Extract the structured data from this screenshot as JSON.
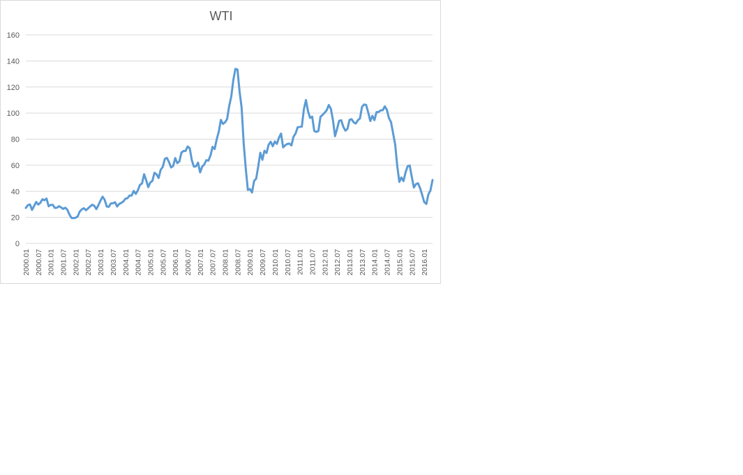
{
  "chart_data": {
    "type": "line",
    "title": "WTI",
    "xlabel": "",
    "ylabel": "",
    "ylim": [
      0,
      160
    ],
    "yticks": [
      0,
      20,
      40,
      60,
      80,
      100,
      120,
      140,
      160
    ],
    "grid": true,
    "legend": "none",
    "series_color": "#5b9bd5",
    "x_tick_labels": [
      "2000.01",
      "2000.07",
      "2001.01",
      "2001.07",
      "2002.01",
      "2002.07",
      "2003.01",
      "2003.07",
      "2004.01",
      "2004.07",
      "2005.01",
      "2005.07",
      "2006.01",
      "2006.07",
      "2007.01",
      "2007.07",
      "2008.01",
      "2008.07",
      "2009.01",
      "2009.07",
      "2010.01",
      "2010.07",
      "2011.01",
      "2011.07",
      "2012.01",
      "2012.07",
      "2013.01",
      "2013.07",
      "2014.01",
      "2014.07",
      "2015.01",
      "2015.07",
      "2016.01"
    ],
    "x_start": "2000.01",
    "series": [
      {
        "values": [
          27.2,
          29.4,
          29.9,
          25.7,
          28.8,
          31.8,
          29.8,
          31.2,
          33.9,
          33.1,
          34.4,
          28.5,
          29.6,
          29.6,
          27.2,
          27.4,
          28.6,
          27.6,
          26.5,
          27.4,
          25.9,
          22.2,
          19.6,
          19.4,
          19.7,
          20.7,
          24.5,
          26.2,
          27.0,
          25.5,
          26.9,
          28.4,
          29.7,
          28.9,
          26.3,
          29.4,
          32.9,
          35.9,
          33.5,
          28.3,
          28.1,
          30.7,
          30.8,
          31.6,
          28.3,
          30.3,
          31.1,
          32.2,
          34.3,
          34.7,
          36.8,
          36.7,
          40.3,
          38.0,
          40.8,
          44.9,
          46.0,
          53.1,
          48.5,
          43.2,
          46.8,
          48.0,
          54.2,
          53.0,
          50.2,
          56.5,
          58.7,
          64.9,
          65.6,
          62.4,
          58.3,
          59.4,
          65.5,
          61.6,
          62.9,
          69.7,
          70.9,
          71.0,
          74.4,
          73.0,
          63.8,
          58.9,
          59.1,
          62.0,
          54.5,
          58.9,
          60.6,
          63.9,
          63.5,
          67.5,
          74.1,
          72.4,
          79.9,
          85.8,
          94.8,
          91.7,
          92.9,
          95.4,
          105.4,
          112.6,
          125.4,
          133.9,
          133.4,
          116.7,
          104.1,
          76.6,
          57.3,
          41.1,
          41.7,
          39.1,
          47.9,
          49.7,
          59.0,
          69.6,
          64.2,
          71.1,
          69.4,
          75.7,
          78.0,
          74.6,
          78.2,
          76.4,
          81.2,
          84.3,
          73.7,
          75.3,
          76.3,
          76.6,
          75.2,
          81.9,
          84.3,
          89.1,
          89.4,
          89.6,
          102.9,
          110.0,
          101.3,
          96.3,
          97.3,
          86.3,
          85.5,
          86.3,
          97.2,
          98.6,
          100.3,
          102.2,
          106.2,
          103.3,
          94.7,
          82.3,
          87.9,
          94.1,
          94.5,
          89.5,
          86.5,
          87.9,
          94.8,
          95.3,
          92.9,
          92.0,
          94.5,
          95.8,
          104.7,
          106.6,
          106.3,
          100.5,
          93.9,
          97.9,
          94.6,
          100.8,
          100.8,
          102.1,
          102.2,
          105.2,
          102.4,
          96.1,
          93.0,
          84.4,
          75.8,
          59.3,
          47.2,
          50.6,
          47.8,
          54.5,
          59.3,
          59.8,
          51.0,
          42.9,
          45.5,
          46.2,
          42.4,
          37.2,
          31.7,
          30.3,
          37.6,
          40.8,
          48.7
        ]
      }
    ]
  }
}
